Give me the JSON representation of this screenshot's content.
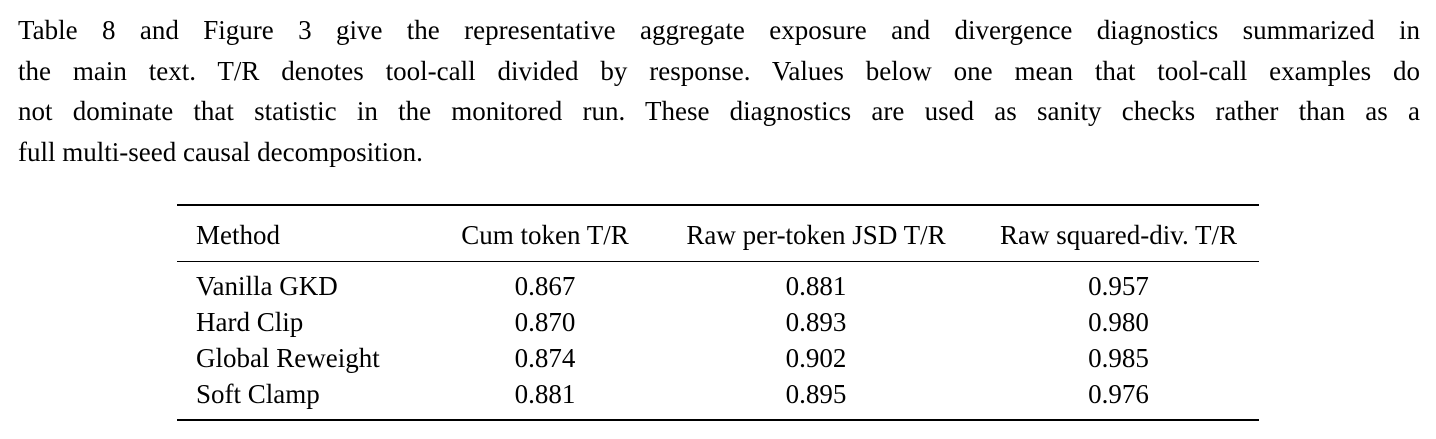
{
  "paragraph": {
    "lines": [
      "Table 8 and Figure 3 give the representative aggregate exposure and divergence diagnostics summarized in",
      "the main text. T/R denotes tool-call divided by response. Values below one mean that tool-call examples do",
      "not dominate that statistic in the monitored run. These diagnostics are used as sanity checks rather than as a",
      "full multi-seed causal decomposition."
    ]
  },
  "table": {
    "headers": [
      "Method",
      "Cum token T/R",
      "Raw per-token JSD T/R",
      "Raw squared-div. T/R"
    ],
    "rows": [
      [
        "Vanilla GKD",
        "0.867",
        "0.881",
        "0.957"
      ],
      [
        "Hard Clip",
        "0.870",
        "0.893",
        "0.980"
      ],
      [
        "Global Reweight",
        "0.874",
        "0.902",
        "0.985"
      ],
      [
        "Soft Clamp",
        "0.881",
        "0.895",
        "0.976"
      ]
    ]
  }
}
